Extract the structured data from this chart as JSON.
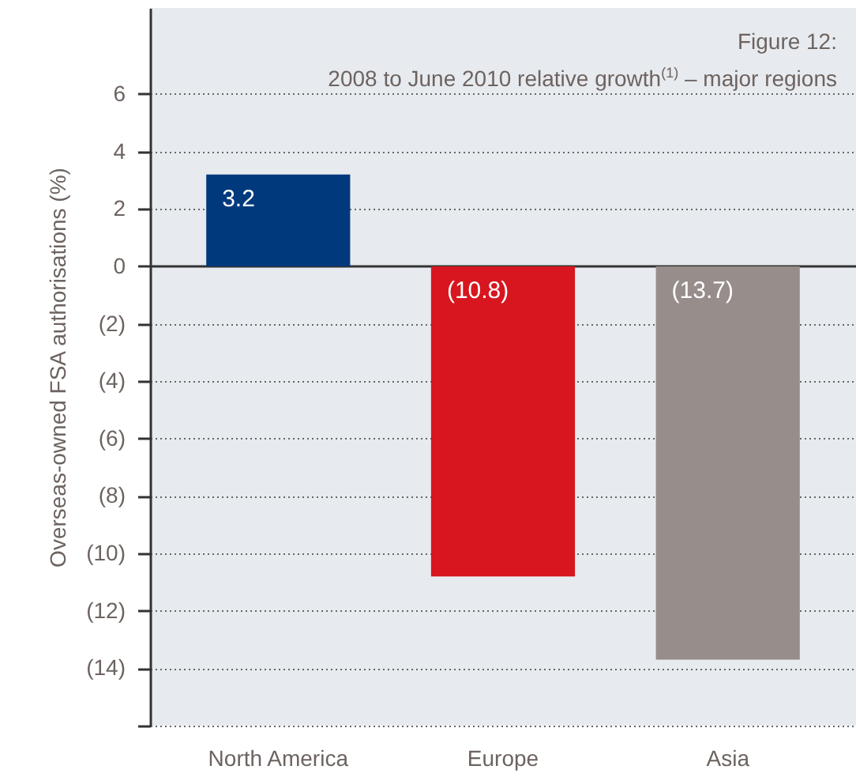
{
  "chart_data": {
    "type": "bar",
    "title": "Figure 12:",
    "subtitle": "2008 to June 2010 relative growth$^{(1)}$ – major regions",
    "ylabel": "Overseas-owned FSA authorisations (%)",
    "categories": [
      "North America",
      "Europe",
      "Asia"
    ],
    "values": [
      3.2,
      -10.8,
      -13.7
    ],
    "colors": [
      "#003a7d",
      "#d7161f",
      "#978d8b"
    ],
    "value_labels": [
      "3.2",
      "(10.8)",
      "(13.7)"
    ],
    "ylim": [
      -16,
      9
    ],
    "yticks": [
      {
        "value": -16,
        "label": null
      },
      {
        "value": -14,
        "label": "(14)"
      },
      {
        "value": -12,
        "label": "(12)"
      },
      {
        "value": -10,
        "label": "(10)"
      },
      {
        "value": -8,
        "label": "(8)"
      },
      {
        "value": -6,
        "label": "(6)"
      },
      {
        "value": -4,
        "label": "(4)"
      },
      {
        "value": -2,
        "label": "(2)"
      },
      0,
      2,
      4,
      6
    ],
    "grid": "y"
  }
}
